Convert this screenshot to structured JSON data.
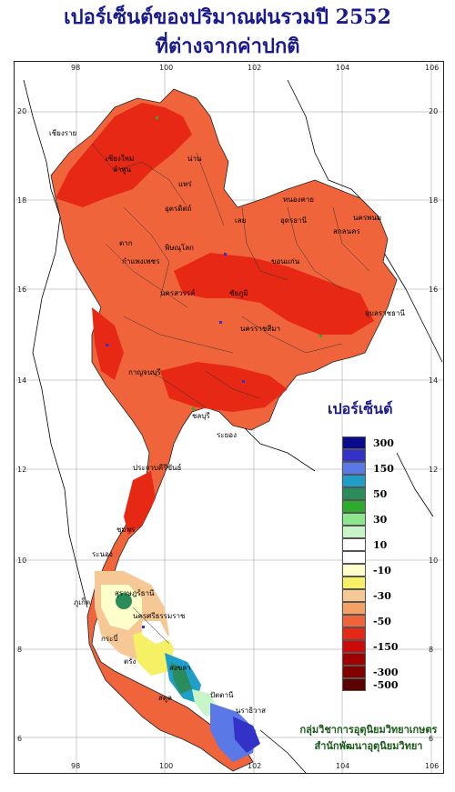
{
  "title": {
    "line1": "เปอร์เซ็นต์ของปริมาณฝนรวมปี  2552",
    "line2": "ที่ต่างจากค่าปกติ"
  },
  "axes": {
    "lon_ticks": [
      "98",
      "100",
      "102",
      "104",
      "106"
    ],
    "lat_ticks": [
      "20",
      "18",
      "16",
      "14",
      "12",
      "10",
      "8",
      "6"
    ]
  },
  "legend": {
    "title": "เปอร์เซ็นต์",
    "items": [
      {
        "label": "300",
        "color": "#0a0a8c"
      },
      {
        "label": "",
        "color": "#3232c8"
      },
      {
        "label": "150",
        "color": "#5a78e6"
      },
      {
        "label": "",
        "color": "#1e9ec8"
      },
      {
        "label": "50",
        "color": "#2a8c5a"
      },
      {
        "label": "",
        "color": "#2eaa2e"
      },
      {
        "label": "30",
        "color": "#8ce68c"
      },
      {
        "label": "",
        "color": "#c8f5c8"
      },
      {
        "label": "10",
        "color": "#ffffff"
      },
      {
        "label": "",
        "color": "#ffffff"
      },
      {
        "label": "-10",
        "color": "#ffffcc"
      },
      {
        "label": "",
        "color": "#f5f064"
      },
      {
        "label": "-30",
        "color": "#f5c896"
      },
      {
        "label": "",
        "color": "#f5a064"
      },
      {
        "label": "-50",
        "color": "#f0643c"
      },
      {
        "label": "",
        "color": "#e62814"
      },
      {
        "label": "-150",
        "color": "#cd0a0a"
      },
      {
        "label": "",
        "color": "#a00000"
      },
      {
        "label": "-300",
        "color": "#820000"
      },
      {
        "label": "-500",
        "color": "#5a0000"
      }
    ]
  },
  "credit": {
    "line1": "กลุ่มวิชาการอุตุนิยมวิทยาเกษตร",
    "line2": "สำนักพัฒนาอุตุนิยมวิทยา"
  },
  "cities": [
    "เชียงราย",
    "เชียงใหม่",
    "ลำพูน",
    "น่าน",
    "แพร่",
    "อุตรดิตถ์",
    "ตาก",
    "พิษณุโลก",
    "กำแพงเพชร",
    "หนองคาย",
    "อุดรธานี",
    "สกลนคร",
    "นครพนม",
    "เลย",
    "ขอนแก่น",
    "ชัยภูมิ",
    "นครสวรรค์",
    "นครราชสีมา",
    "อุบลราชธานี",
    "กาญจนบุรี",
    "ชลบุรี",
    "ระยอง",
    "ประจวบคีรีขันธ์",
    "ชุมพร",
    "ระนอง",
    "สุราษฎร์ธานี",
    "ภูเก็ต",
    "นครศรีธรรมราช",
    "กระบี่",
    "ตรัง",
    "สงขลา",
    "ปัตตานี",
    "นราธิวาส",
    "สตูล"
  ]
}
